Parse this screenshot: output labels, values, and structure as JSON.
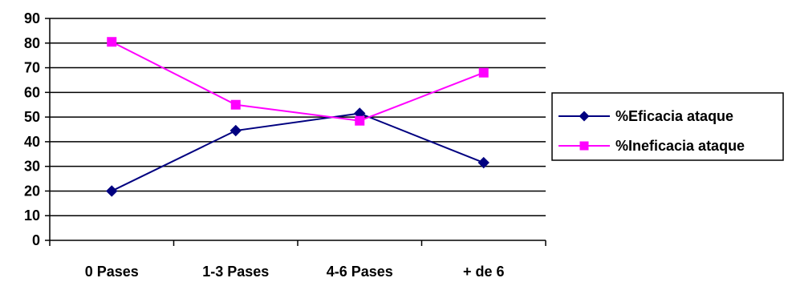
{
  "chart_data": {
    "type": "line",
    "categories": [
      "0 Pases",
      "1-3 Pases",
      "4-6 Pases",
      "+ de 6"
    ],
    "series": [
      {
        "name": "%Eficacia ataque",
        "values": [
          20,
          44.5,
          51.5,
          31.5
        ],
        "color": "#000080",
        "marker": "diamond"
      },
      {
        "name": "%Ineficacia ataque",
        "values": [
          80.5,
          55,
          48.5,
          68
        ],
        "color": "#ff00ff",
        "marker": "square"
      }
    ],
    "title": "",
    "xlabel": "",
    "ylabel": "",
    "ylim": [
      0,
      90
    ],
    "yticks": [
      0,
      10,
      20,
      30,
      40,
      50,
      60,
      70,
      80,
      90
    ],
    "grid": true,
    "legend_position": "right"
  }
}
